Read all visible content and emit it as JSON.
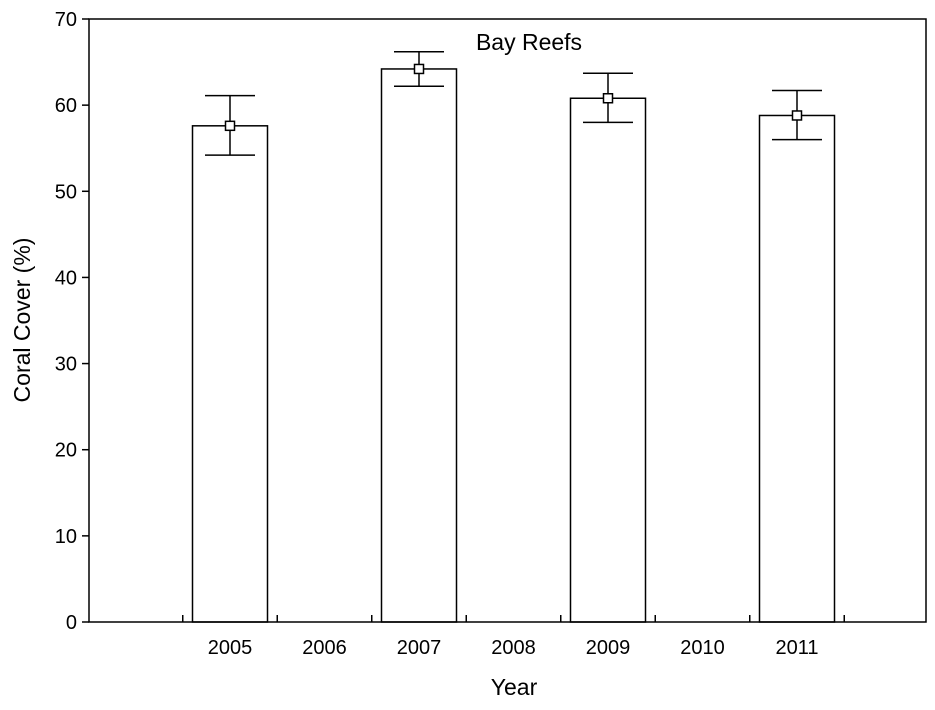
{
  "chart_data": {
    "type": "bar",
    "title": "Bay Reefs",
    "xlabel": "Year",
    "ylabel": "Coral Cover (%)",
    "categories": [
      "2005",
      "2006",
      "2007",
      "2008",
      "2009",
      "2010",
      "2011"
    ],
    "values": [
      57.6,
      null,
      64.2,
      null,
      60.8,
      null,
      58.8
    ],
    "error_low": [
      54.2,
      null,
      62.2,
      null,
      58.0,
      null,
      56.0
    ],
    "error_high": [
      61.1,
      null,
      66.2,
      null,
      63.7,
      null,
      61.7
    ],
    "ylim": [
      0,
      70
    ],
    "yticks": [
      0,
      10,
      20,
      30,
      40,
      50,
      60,
      70
    ],
    "grid": false,
    "legend": "none",
    "colors": {
      "bar_fill": "#ffffff",
      "stroke": "#000000",
      "marker_fill": "#ffffff"
    }
  }
}
